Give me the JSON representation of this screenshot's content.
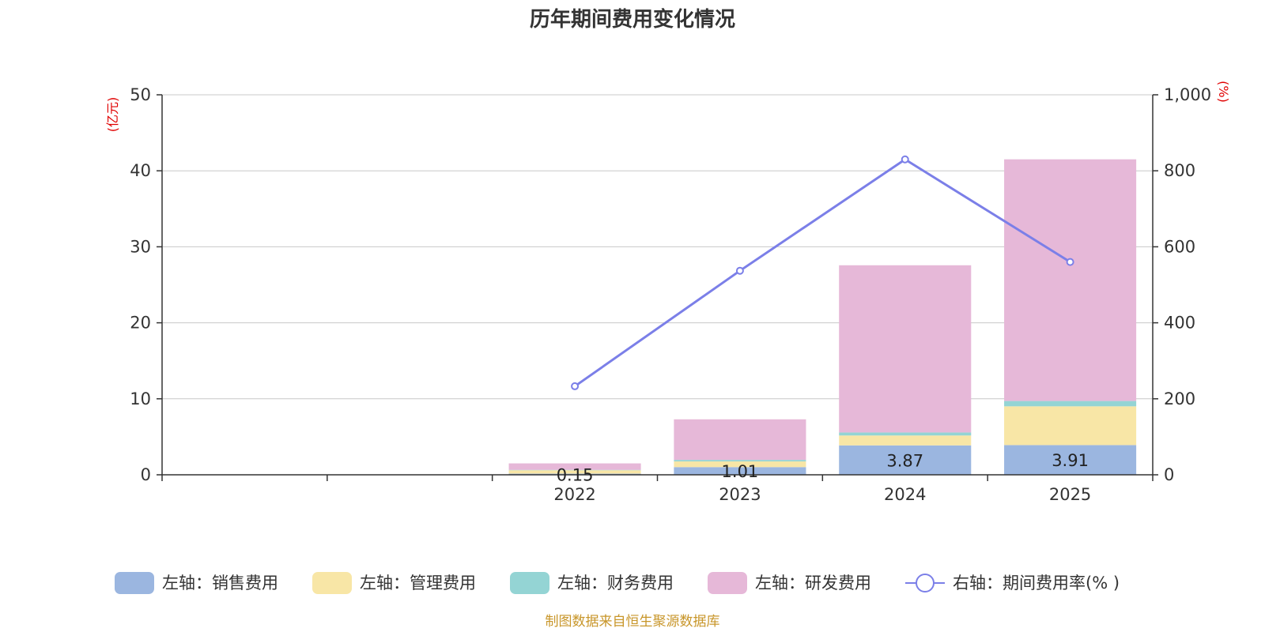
{
  "chart_data": {
    "type": "bar",
    "stacked": true,
    "title": "历年期间费用变化情况",
    "categories": [
      "",
      "",
      "2022",
      "2023",
      "2024",
      "2025"
    ],
    "left_axis": {
      "unit": "(亿元)",
      "min": 0,
      "max": 50,
      "ticks": [
        "0",
        "10",
        "20",
        "30",
        "40",
        "50"
      ]
    },
    "right_axis": {
      "unit": "(%)",
      "min": 0,
      "max": 1000,
      "ticks": [
        "0",
        "200",
        "400",
        "600",
        "800",
        "1,000"
      ]
    },
    "series": [
      {
        "name": "左轴：销售费用",
        "axis": "left",
        "color": "#9bb6e0",
        "values": [
          null,
          null,
          0.15,
          1.01,
          3.87,
          3.91
        ],
        "labels": [
          "",
          "",
          "0.15",
          "1.01",
          "3.87",
          "3.91"
        ]
      },
      {
        "name": "左轴：管理费用",
        "axis": "left",
        "color": "#f8e6a6",
        "values": [
          null,
          null,
          0.45,
          0.75,
          1.3,
          5.1
        ]
      },
      {
        "name": "左轴：财务费用",
        "axis": "left",
        "color": "#94d4d4",
        "values": [
          null,
          null,
          0.05,
          0.2,
          0.4,
          0.7
        ]
      },
      {
        "name": "左轴：研发费用",
        "axis": "left",
        "color": "#e6b8d8",
        "values": [
          null,
          null,
          0.85,
          5.34,
          22.0,
          31.8
        ]
      }
    ],
    "line": {
      "name": "右轴：期间费用率(% )",
      "axis": "right",
      "color": "#7b7fe8",
      "values": [
        null,
        null,
        233,
        537,
        830,
        560
      ]
    },
    "grid": true,
    "legend_position": "bottom"
  },
  "source": "制图数据来自恒生聚源数据库"
}
